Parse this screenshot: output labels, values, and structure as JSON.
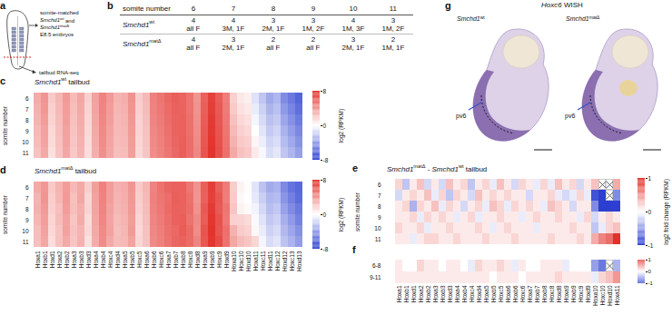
{
  "panels": {
    "a": {
      "letter": "a",
      "lines": [
        [
          {
            "text": "somite-matched"
          }
        ],
        [
          {
            "text": "Smchd1",
            "italic": true
          },
          {
            "text": "wt",
            "sup": true
          },
          {
            "text": " and"
          }
        ],
        [
          {
            "text": "Smchd1",
            "italic": true
          },
          {
            "text": "matΔ",
            "sup": true
          }
        ],
        [
          {
            "text": "E8.5 embryos"
          }
        ]
      ],
      "lower_label": [
        {
          "text": "tailbud RNA-seq"
        }
      ]
    },
    "b": {
      "letter": "b",
      "header": "somite number",
      "columns": [
        6,
        7,
        8,
        9,
        10,
        11
      ],
      "rows": [
        {
          "label": [
            {
              "text": "Smchd1",
              "italic": true
            },
            {
              "text": "wt",
              "sup": true
            }
          ],
          "cells": [
            {
              "n": 4,
              "sex": "all F"
            },
            {
              "n": 4,
              "sex": "3M, 1F"
            },
            {
              "n": 3,
              "sex": "2M, 1F"
            },
            {
              "n": 3,
              "sex": "1M, 2F"
            },
            {
              "n": 4,
              "sex": "1M, 3F"
            },
            {
              "n": 3,
              "sex": "1M, 2F"
            }
          ]
        },
        {
          "label": [
            {
              "text": "Smchd1",
              "italic": true
            },
            {
              "text": "matΔ",
              "sup": true
            }
          ],
          "cells": [
            {
              "n": 4,
              "sex": "all F"
            },
            {
              "n": 3,
              "sex": "2M, 1F"
            },
            {
              "n": 2,
              "sex": "all F"
            },
            {
              "n": 2,
              "sex": "all F"
            },
            {
              "n": 3,
              "sex": "2M, 1F"
            },
            {
              "n": 2,
              "sex": "1M, 1F"
            }
          ]
        }
      ]
    },
    "g": {
      "letter": "g",
      "title": [
        {
          "text": "Hoxc6",
          "italic": true
        },
        {
          "text": " WISH"
        }
      ],
      "images": [
        {
          "label": [
            {
              "text": "Smchd1",
              "italic": true
            },
            {
              "text": "wt",
              "sup": true
            }
          ],
          "annotation": "pv6"
        },
        {
          "label": [
            {
              "text": "Smchd1",
              "italic": true
            },
            {
              "text": "matΔ",
              "sup": true
            }
          ],
          "annotation": "pv6"
        }
      ]
    }
  },
  "chart_data": [
    {
      "type": "heatmap",
      "letter": "c",
      "title": [
        {
          "text": "Smchd1",
          "italic": true
        },
        {
          "text": "wt",
          "sup": true
        },
        {
          "text": " tailbud"
        }
      ],
      "ylabel": "somite number",
      "tick_labels": "y",
      "colors": [
        "#2c3fd1",
        "#ffffff",
        "#e3302a"
      ],
      "colorbar": {
        "range": [
          -8,
          8
        ],
        "ticks": [
          -8,
          0,
          8
        ],
        "label": "log2 (RPKM)"
      },
      "x": [
        "Hoxa1",
        "Hoxb1",
        "Hoxd1",
        "Hoxa2",
        "Hoxb2",
        "Hoxa3",
        "Hoxb3",
        "Hoxd3",
        "Hoxa4",
        "Hoxb4",
        "Hoxc4",
        "Hoxd4",
        "Hoxa5",
        "Hoxb5",
        "Hoxc5",
        "Hoxa6",
        "Hoxb6",
        "Hoxc6",
        "Hoxa7",
        "Hoxb7",
        "Hoxb8",
        "Hoxc8",
        "Hoxd8",
        "Hoxa9",
        "Hoxb9",
        "Hoxc9",
        "Hoxd9",
        "Hoxa10",
        "Hoxc10",
        "Hoxd10",
        "Hoxa11",
        "Hoxc11",
        "Hoxd11",
        "Hoxc12",
        "Hoxd12",
        "Hoxc13",
        "Hoxd13"
      ],
      "y": [
        6,
        7,
        8,
        9,
        10,
        11
      ],
      "values": [
        [
          3.2,
          4.1,
          2.0,
          2.8,
          3.9,
          2.6,
          3.4,
          1.8,
          3.6,
          4.8,
          3.9,
          2.9,
          3.1,
          4.2,
          1.9,
          2.7,
          4.9,
          5.3,
          5.8,
          6.2,
          6.0,
          5.4,
          4.1,
          6.1,
          7.4,
          6.3,
          5.0,
          1.8,
          0.9,
          0.6,
          -1.2,
          -2.4,
          -3.6,
          -3.0,
          -4.8,
          -5.6,
          -6.4
        ],
        [
          3.0,
          4.0,
          1.8,
          2.7,
          3.8,
          2.5,
          3.3,
          1.7,
          3.5,
          4.7,
          3.8,
          2.8,
          3.0,
          4.1,
          1.8,
          2.6,
          4.8,
          5.2,
          5.7,
          6.1,
          6.0,
          5.4,
          4.2,
          6.2,
          7.5,
          6.4,
          5.1,
          2.1,
          1.2,
          0.9,
          -0.8,
          -1.9,
          -3.1,
          -2.6,
          -4.2,
          -5.1,
          -6.0
        ],
        [
          2.9,
          3.8,
          1.7,
          2.6,
          3.7,
          2.4,
          3.2,
          1.6,
          3.4,
          4.6,
          3.7,
          2.7,
          2.9,
          4.0,
          1.7,
          2.5,
          4.7,
          5.1,
          5.6,
          6.0,
          6.1,
          5.5,
          4.3,
          6.3,
          7.6,
          6.5,
          5.2,
          2.4,
          1.5,
          1.2,
          -0.4,
          -1.5,
          -2.6,
          -2.2,
          -3.7,
          -4.6,
          -5.5
        ],
        [
          2.7,
          3.6,
          1.5,
          2.5,
          3.6,
          2.3,
          3.1,
          1.5,
          3.3,
          4.5,
          3.6,
          2.7,
          2.8,
          3.9,
          1.7,
          2.4,
          4.6,
          5.0,
          5.5,
          6.0,
          6.1,
          5.5,
          4.4,
          6.4,
          7.7,
          6.6,
          5.3,
          2.7,
          1.8,
          1.5,
          0.0,
          -1.1,
          -2.2,
          -1.8,
          -3.2,
          -4.1,
          -5.0
        ],
        [
          2.6,
          3.5,
          1.4,
          2.4,
          3.5,
          2.2,
          3.0,
          1.4,
          3.2,
          4.4,
          3.5,
          2.6,
          2.7,
          3.8,
          1.6,
          2.3,
          4.5,
          4.9,
          5.4,
          5.9,
          6.2,
          5.6,
          4.5,
          6.5,
          7.8,
          6.7,
          5.4,
          3.0,
          2.1,
          1.8,
          0.4,
          -0.7,
          -1.8,
          -1.4,
          -2.8,
          -3.6,
          -4.5
        ],
        [
          2.4,
          3.3,
          1.2,
          2.3,
          3.4,
          2.1,
          2.9,
          1.3,
          3.1,
          4.3,
          3.4,
          2.5,
          2.6,
          3.7,
          1.5,
          2.2,
          4.4,
          4.8,
          5.3,
          5.8,
          6.2,
          5.6,
          4.6,
          6.6,
          7.9,
          6.8,
          5.5,
          3.3,
          2.4,
          2.1,
          0.8,
          -0.3,
          -1.4,
          -1.0,
          -2.4,
          -3.1,
          -4.0
        ]
      ]
    },
    {
      "type": "heatmap",
      "letter": "d",
      "title": [
        {
          "text": "Smchd1",
          "italic": true
        },
        {
          "text": "matΔ",
          "sup": true
        },
        {
          "text": " tailbud"
        }
      ],
      "ylabel": "somite number",
      "tick_labels": true,
      "colors": [
        "#2c3fd1",
        "#ffffff",
        "#e3302a"
      ],
      "colorbar": {
        "range": [
          -8,
          8
        ],
        "ticks": [
          -8,
          0,
          8
        ],
        "label": "log2 (RPKM)"
      },
      "x": [
        "Hoxa1",
        "Hoxb1",
        "Hoxd1",
        "Hoxa2",
        "Hoxb2",
        "Hoxa3",
        "Hoxb3",
        "Hoxd3",
        "Hoxa4",
        "Hoxb4",
        "Hoxc4",
        "Hoxd4",
        "Hoxa5",
        "Hoxb5",
        "Hoxc5",
        "Hoxa6",
        "Hoxb6",
        "Hoxc6",
        "Hoxa7",
        "Hoxb7",
        "Hoxb8",
        "Hoxc8",
        "Hoxd8",
        "Hoxa9",
        "Hoxb9",
        "Hoxc9",
        "Hoxd9",
        "Hoxa10",
        "Hoxc10",
        "Hoxd10",
        "Hoxa11",
        "Hoxc11",
        "Hoxd11",
        "Hoxc12",
        "Hoxd12",
        "Hoxc13",
        "Hoxd13"
      ],
      "y": [
        6,
        7,
        8,
        9,
        10,
        11
      ],
      "values": [
        [
          3.3,
          4.0,
          2.1,
          2.9,
          3.8,
          2.7,
          3.3,
          1.9,
          3.7,
          4.9,
          3.8,
          3.0,
          3.2,
          4.1,
          2.0,
          2.8,
          4.8,
          5.4,
          5.9,
          6.1,
          6.1,
          5.3,
          4.2,
          6.2,
          7.5,
          6.2,
          5.1,
          1.9,
          0.5,
          0.1,
          -1.1,
          -2.5,
          -3.5,
          -3.2,
          -4.9,
          -5.8,
          -6.3
        ],
        [
          2.9,
          4.1,
          1.9,
          2.8,
          3.9,
          2.4,
          3.4,
          1.6,
          3.6,
          4.8,
          3.7,
          2.9,
          3.1,
          4.0,
          1.9,
          2.7,
          4.9,
          5.3,
          5.6,
          6.2,
          6.1,
          5.5,
          4.1,
          6.1,
          7.4,
          6.5,
          5.0,
          2.0,
          0.3,
          0.0,
          -0.9,
          -2.0,
          -3.0,
          -2.8,
          -4.4,
          -5.3,
          -6.1
        ],
        [
          3.0,
          3.9,
          1.8,
          2.5,
          3.8,
          2.5,
          3.1,
          1.7,
          3.5,
          4.7,
          3.6,
          2.8,
          3.0,
          3.9,
          1.8,
          2.6,
          4.8,
          5.2,
          5.7,
          6.1,
          6.0,
          5.6,
          4.2,
          6.4,
          7.6,
          6.4,
          5.3,
          2.2,
          0.5,
          0.2,
          -0.5,
          -1.6,
          -2.7,
          -2.3,
          -3.9,
          -4.8,
          -5.6
        ],
        [
          2.8,
          3.7,
          1.6,
          2.6,
          3.5,
          2.2,
          3.2,
          1.4,
          3.4,
          4.6,
          3.5,
          2.6,
          2.9,
          3.8,
          1.6,
          2.5,
          4.7,
          5.1,
          5.6,
          6.1,
          6.2,
          5.4,
          4.5,
          6.3,
          7.8,
          6.7,
          5.2,
          1.8,
          1.7,
          1.4,
          -0.2,
          -1.2,
          -2.3,
          -1.9,
          -3.3,
          -4.2,
          -5.2
        ],
        [
          2.5,
          3.6,
          1.5,
          2.3,
          3.6,
          2.3,
          2.9,
          1.5,
          3.3,
          4.5,
          3.6,
          2.5,
          2.8,
          3.9,
          1.5,
          2.4,
          4.6,
          5.0,
          5.5,
          5.8,
          6.3,
          5.7,
          4.4,
          6.6,
          7.9,
          6.6,
          5.5,
          3.0,
          2.0,
          1.7,
          0.3,
          -0.8,
          -1.9,
          -1.5,
          -2.9,
          -3.7,
          -4.6
        ],
        [
          2.5,
          3.4,
          1.3,
          2.4,
          3.3,
          2.2,
          3.0,
          1.2,
          3.2,
          4.4,
          3.3,
          2.6,
          2.7,
          3.6,
          1.6,
          2.3,
          4.5,
          4.9,
          5.4,
          5.9,
          6.1,
          5.7,
          4.7,
          6.5,
          7.8,
          6.9,
          5.4,
          3.4,
          2.6,
          2.2,
          1.6,
          -0.4,
          -1.5,
          -1.1,
          -2.5,
          -3.2,
          -4.1
        ]
      ]
    },
    {
      "type": "heatmap",
      "letter": "e",
      "title": [
        {
          "text": "Smchd1",
          "italic": true
        },
        {
          "text": "matΔ",
          "sup": true
        },
        {
          "text": " - "
        },
        {
          "text": "Smchd1",
          "italic": true
        },
        {
          "text": "wt",
          "sup": true
        },
        {
          "text": " tailbud"
        }
      ],
      "ylabel": "somite number",
      "tick_labels": "y",
      "colors": [
        "#2c3fd1",
        "#ffffff",
        "#e3302a"
      ],
      "colorbar": {
        "range": [
          -1,
          1
        ],
        "ticks": [
          -1,
          0,
          1
        ],
        "label": "log2 fold change (RPKM)"
      },
      "x": [
        "Hoxa1",
        "Hoxb1",
        "Hoxd1",
        "Hoxa2",
        "Hoxb2",
        "Hoxa3",
        "Hoxb3",
        "Hoxd3",
        "Hoxa4",
        "Hoxb4",
        "Hoxc4",
        "Hoxd4",
        "Hoxa5",
        "Hoxb5",
        "Hoxc5",
        "Hoxa6",
        "Hoxb6",
        "Hoxc6",
        "Hoxa7",
        "Hoxb7",
        "Hoxb8",
        "Hoxc8",
        "Hoxd8",
        "Hoxa9",
        "Hoxb9",
        "Hoxc9",
        "Hoxd9",
        "Hoxa10",
        "Hoxc10",
        "Hoxd10",
        "Hoxa11"
      ],
      "y": [
        6,
        7,
        8,
        9,
        10,
        11
      ],
      "values": [
        [
          0.2,
          -0.3,
          0.1,
          0.3,
          -0.2,
          0.1,
          -0.2,
          0.3,
          0.1,
          0.2,
          -0.3,
          0.1,
          0.2,
          -0.1,
          0.3,
          0.1,
          -0.2,
          0.2,
          0.1,
          -0.1,
          0.2,
          -0.1,
          0.3,
          0.1,
          0.2,
          -0.2,
          0.1,
          0.3,
          null,
          null,
          0.4
        ],
        [
          -0.2,
          0.1,
          0.2,
          0.1,
          0.3,
          -0.1,
          0.2,
          -0.3,
          0.2,
          0.1,
          -0.2,
          0.3,
          0.1,
          0.2,
          0.1,
          0.2,
          0.1,
          0.1,
          -0.2,
          0.1,
          0.1,
          0.2,
          -0.1,
          -0.2,
          -0.1,
          0.2,
          -0.1,
          -0.9,
          -1.0,
          null,
          -0.6
        ],
        [
          0.1,
          0.2,
          -0.4,
          0.2,
          0.1,
          0.3,
          -0.1,
          0.2,
          0.1,
          -0.2,
          0.1,
          0.2,
          -0.1,
          0.3,
          0.2,
          -0.1,
          0.2,
          0.1,
          0.2,
          0.1,
          -0.1,
          0.3,
          0.2,
          0.1,
          -0.2,
          0.1,
          0.1,
          -0.6,
          -1.0,
          -1.0,
          -1.0
        ],
        [
          0.1,
          0.1,
          0.2,
          -0.1,
          0.2,
          0.1,
          0.2,
          0.1,
          -0.1,
          0.1,
          0.2,
          -0.1,
          0.1,
          0.1,
          0.2,
          0.1,
          0.1,
          -0.1,
          0.1,
          0.2,
          0.1,
          0.1,
          0.2,
          0.1,
          0.1,
          -0.1,
          0.2,
          -0.2,
          0.1,
          0.2,
          0.1
        ],
        [
          0.2,
          0.1,
          0.1,
          0.2,
          -0.1,
          0.1,
          0.1,
          0.2,
          0.1,
          0.1,
          0.1,
          0.2,
          0.1,
          -0.1,
          0.1,
          0.2,
          0.1,
          0.1,
          0.1,
          -0.1,
          0.1,
          0.1,
          0.1,
          0.1,
          0.2,
          0.1,
          0.1,
          -0.3,
          -0.1,
          0.2,
          0.3
        ],
        [
          0.1,
          0.1,
          -0.1,
          0.1,
          0.2,
          0.2,
          0.1,
          0.1,
          0.2,
          0.1,
          0.1,
          0.1,
          0.2,
          0.1,
          0.1,
          0.1,
          0.2,
          0.1,
          0.1,
          0.1,
          0.1,
          0.2,
          0.1,
          0.1,
          0.1,
          0.2,
          0.1,
          0.4,
          0.6,
          0.7,
          1.0
        ]
      ]
    },
    {
      "type": "heatmap",
      "letter": "f",
      "tick_labels": true,
      "colors": [
        "#2c3fd1",
        "#ffffff",
        "#e3302a"
      ],
      "colorbar": {
        "range": [
          -1,
          1
        ],
        "ticks": [
          -1,
          0,
          1
        ]
      },
      "x": [
        "Hoxa1",
        "Hoxb1",
        "Hoxd1",
        "Hoxa2",
        "Hoxb2",
        "Hoxa3",
        "Hoxb3",
        "Hoxd3",
        "Hoxa4",
        "Hoxb4",
        "Hoxc4",
        "Hoxd4",
        "Hoxa5",
        "Hoxb5",
        "Hoxc5",
        "Hoxa6",
        "Hoxb6",
        "Hoxc6",
        "Hoxa7",
        "Hoxb7",
        "Hoxb8",
        "Hoxc8",
        "Hoxd8",
        "Hoxa9",
        "Hoxb9",
        "Hoxc9",
        "Hoxd9",
        "Hoxa10",
        "Hoxc10",
        "Hoxd10",
        "Hoxa11"
      ],
      "y": [
        "6-8",
        "9-11"
      ],
      "values": [
        [
          0.1,
          0,
          0,
          0.2,
          0.1,
          0.1,
          0,
          0.1,
          0.1,
          0,
          -0.1,
          0.2,
          0.1,
          0.1,
          0.2,
          0.1,
          -0.1,
          0.1,
          0,
          0,
          0.1,
          0.1,
          0.1,
          -0.1,
          0,
          0,
          0,
          -0.5,
          -0.7,
          null,
          -0.4
        ],
        [
          0.1,
          0.1,
          0.1,
          0.1,
          0.1,
          0.1,
          0.1,
          0.1,
          0.1,
          0.1,
          0.1,
          0.1,
          0.1,
          0,
          0.1,
          0.1,
          0.1,
          0,
          0.1,
          0.1,
          0.1,
          0.1,
          0.2,
          0.1,
          0.1,
          0.1,
          0.1,
          -0.1,
          0.2,
          0.3,
          0.5
        ]
      ]
    }
  ]
}
